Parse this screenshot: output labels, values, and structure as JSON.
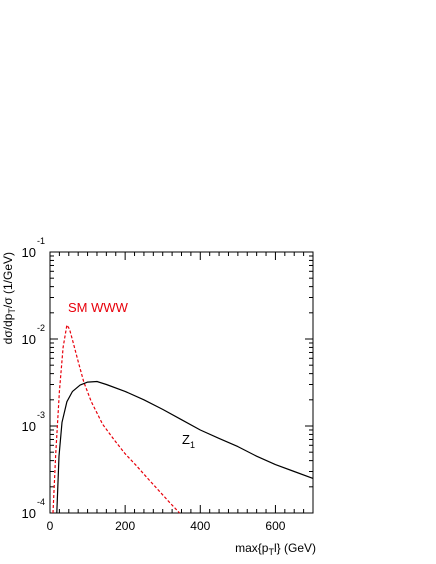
{
  "chart_data": {
    "type": "line",
    "title": "",
    "xlabel": "max{p_T^l} (GeV)",
    "ylabel": "dσ/dp_T/σ (1/GeV)",
    "xlim": [
      0,
      700
    ],
    "ylim": [
      0.0001,
      0.1
    ],
    "yscale": "log",
    "grid": false,
    "x_ticks": [
      0,
      200,
      400,
      600
    ],
    "y_ticks": [
      {
        "value": 0.1,
        "base": "10",
        "exp": "-1"
      },
      {
        "value": 0.01,
        "base": "10",
        "exp": "-2"
      },
      {
        "value": 0.001,
        "base": "10",
        "exp": "-3"
      },
      {
        "value": 0.0001,
        "base": "10",
        "exp": "-4"
      }
    ],
    "series": [
      {
        "name": "SM WWW",
        "color": "#e8000b",
        "dash": "dashed",
        "points": [
          [
            8,
            0.0001
          ],
          [
            15,
            0.00045
          ],
          [
            25,
            0.0025
          ],
          [
            35,
            0.008
          ],
          [
            45,
            0.0145
          ],
          [
            52,
            0.013
          ],
          [
            62,
            0.009
          ],
          [
            75,
            0.0055
          ],
          [
            90,
            0.0032
          ],
          [
            110,
            0.0019
          ],
          [
            140,
            0.00105
          ],
          [
            170,
            0.0007
          ],
          [
            200,
            0.00048
          ],
          [
            230,
            0.00035
          ],
          [
            260,
            0.00025
          ],
          [
            290,
            0.00018
          ],
          [
            320,
            0.00013
          ],
          [
            345,
            0.0001
          ]
        ]
      },
      {
        "name": "Z₁",
        "color": "#000000",
        "dash": "solid",
        "points": [
          [
            18,
            0.0001
          ],
          [
            24,
            0.00045
          ],
          [
            32,
            0.0011
          ],
          [
            45,
            0.0019
          ],
          [
            60,
            0.0025
          ],
          [
            80,
            0.00295
          ],
          [
            100,
            0.0032
          ],
          [
            125,
            0.00325
          ],
          [
            150,
            0.003
          ],
          [
            200,
            0.0025
          ],
          [
            250,
            0.002
          ],
          [
            300,
            0.00155
          ],
          [
            350,
            0.00118
          ],
          [
            400,
            0.0009
          ],
          [
            450,
            0.00072
          ],
          [
            500,
            0.00058
          ],
          [
            550,
            0.00045
          ],
          [
            600,
            0.00036
          ],
          [
            650,
            0.0003
          ],
          [
            700,
            0.00025
          ]
        ]
      }
    ],
    "annotations": [
      {
        "text": "SM WWW",
        "series": "SM WWW"
      },
      {
        "text": "Z",
        "sub": "1",
        "series": "Z₁"
      }
    ]
  }
}
